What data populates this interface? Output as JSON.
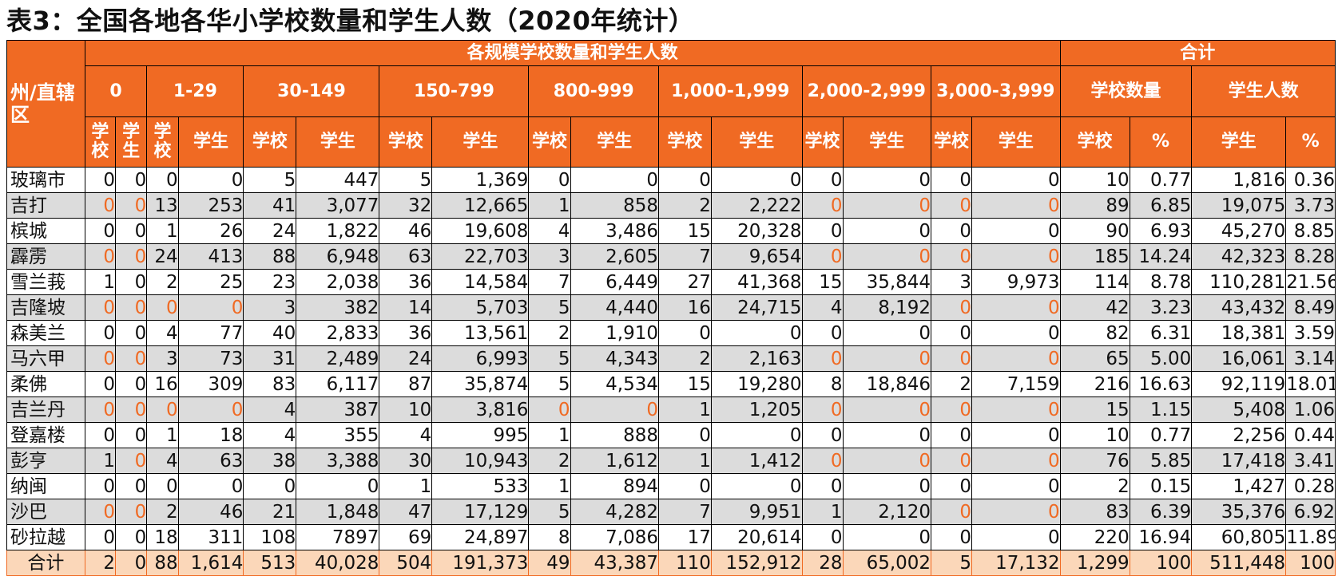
{
  "title": "表3：全国各地各华小学校数量和学生人数（2020年统计）",
  "header": {
    "row_header": "州/直辖区",
    "group_main": "各规模学校数量和学生人数",
    "group_total": "合计",
    "size_bands": [
      "0",
      "1-29",
      "30-149",
      "150-799",
      "800-999",
      "1,000-1,999",
      "2,000-2,999",
      "3,000-3,999"
    ],
    "total_subgroups": [
      "学校数量",
      "学生人数"
    ],
    "sub_school": "学校",
    "sub_student": "学生",
    "sub_pct": "%"
  },
  "rows": [
    {
      "name": "玻璃市",
      "v": [
        "0",
        "0",
        "0",
        "0",
        "5",
        "447",
        "5",
        "1,369",
        "0",
        "0",
        "0",
        "0",
        "0",
        "0",
        "0",
        "0",
        "10",
        "0.77",
        "1,816",
        "0.36"
      ]
    },
    {
      "name": "吉打",
      "v": [
        "0",
        "0",
        "13",
        "253",
        "41",
        "3,077",
        "32",
        "12,665",
        "1",
        "858",
        "2",
        "2,222",
        "0",
        "0",
        "0",
        "0",
        "89",
        "6.85",
        "19,075",
        "3.73"
      ]
    },
    {
      "name": "槟城",
      "v": [
        "0",
        "0",
        "1",
        "26",
        "24",
        "1,822",
        "46",
        "19,608",
        "4",
        "3,486",
        "15",
        "20,328",
        "0",
        "0",
        "0",
        "0",
        "90",
        "6.93",
        "45,270",
        "8.85"
      ]
    },
    {
      "name": "霹雳",
      "v": [
        "0",
        "0",
        "24",
        "413",
        "88",
        "6,948",
        "63",
        "22,703",
        "3",
        "2,605",
        "7",
        "9,654",
        "0",
        "0",
        "0",
        "0",
        "185",
        "14.24",
        "42,323",
        "8.28"
      ]
    },
    {
      "name": "雪兰莪",
      "v": [
        "1",
        "0",
        "2",
        "25",
        "23",
        "2,038",
        "36",
        "14,584",
        "7",
        "6,449",
        "27",
        "41,368",
        "15",
        "35,844",
        "3",
        "9,973",
        "114",
        "8.78",
        "110,281",
        "21.56"
      ]
    },
    {
      "name": "吉隆坡",
      "v": [
        "0",
        "0",
        "0",
        "0",
        "3",
        "382",
        "14",
        "5,703",
        "5",
        "4,440",
        "16",
        "24,715",
        "4",
        "8,192",
        "0",
        "0",
        "42",
        "3.23",
        "43,432",
        "8.49"
      ]
    },
    {
      "name": "森美兰",
      "v": [
        "0",
        "0",
        "4",
        "77",
        "40",
        "2,833",
        "36",
        "13,561",
        "2",
        "1,910",
        "0",
        "0",
        "0",
        "0",
        "0",
        "0",
        "82",
        "6.31",
        "18,381",
        "3.59"
      ]
    },
    {
      "name": "马六甲",
      "v": [
        "0",
        "0",
        "3",
        "73",
        "31",
        "2,489",
        "24",
        "6,993",
        "5",
        "4,343",
        "2",
        "2,163",
        "0",
        "0",
        "0",
        "0",
        "65",
        "5.00",
        "16,061",
        "3.14"
      ]
    },
    {
      "name": "柔佛",
      "v": [
        "0",
        "0",
        "16",
        "309",
        "83",
        "6,117",
        "87",
        "35,874",
        "5",
        "4,534",
        "15",
        "19,280",
        "8",
        "18,846",
        "2",
        "7,159",
        "216",
        "16.63",
        "92,119",
        "18.01"
      ]
    },
    {
      "name": "吉兰丹",
      "v": [
        "0",
        "0",
        "0",
        "0",
        "4",
        "387",
        "10",
        "3,816",
        "0",
        "0",
        "1",
        "1,205",
        "0",
        "0",
        "0",
        "0",
        "15",
        "1.15",
        "5,408",
        "1.06"
      ]
    },
    {
      "name": "登嘉楼",
      "v": [
        "0",
        "0",
        "1",
        "18",
        "4",
        "355",
        "4",
        "995",
        "1",
        "888",
        "0",
        "0",
        "0",
        "0",
        "0",
        "0",
        "10",
        "0.77",
        "2,256",
        "0.44"
      ]
    },
    {
      "name": "彭亨",
      "v": [
        "1",
        "0",
        "4",
        "63",
        "38",
        "3,388",
        "30",
        "10,943",
        "2",
        "1,612",
        "1",
        "1,412",
        "0",
        "0",
        "0",
        "0",
        "76",
        "5.85",
        "17,418",
        "3.41"
      ]
    },
    {
      "name": "纳闽",
      "v": [
        "0",
        "0",
        "0",
        "0",
        "0",
        "0",
        "1",
        "533",
        "1",
        "894",
        "0",
        "0",
        "0",
        "0",
        "0",
        "0",
        "2",
        "0.15",
        "1,427",
        "0.28"
      ]
    },
    {
      "name": "沙巴",
      "v": [
        "0",
        "0",
        "2",
        "46",
        "21",
        "1,848",
        "47",
        "17,129",
        "5",
        "4,282",
        "7",
        "9,951",
        "1",
        "2,120",
        "0",
        "0",
        "83",
        "6.39",
        "35,376",
        "6.92"
      ]
    },
    {
      "name": "砂拉越",
      "v": [
        "0",
        "0",
        "18",
        "311",
        "108",
        "7897",
        "69",
        "24,897",
        "8",
        "7,086",
        "17",
        "20,614",
        "0",
        "0",
        "0",
        "0",
        "220",
        "16.94",
        "60,805",
        "11.89"
      ]
    }
  ],
  "total": {
    "name": "合计",
    "v": [
      "2",
      "0",
      "88",
      "1,614",
      "513",
      "40,028",
      "504",
      "191,373",
      "49",
      "43,387",
      "110",
      "152,912",
      "28",
      "65,002",
      "5",
      "17,132",
      "1,299",
      "100",
      "511,448",
      "100"
    ]
  },
  "colors": {
    "header_bg": "#f06a23",
    "header_text": "#ffffff",
    "alt_row": "#dcdcdc",
    "total_row": "#fbd7b9",
    "zero_accent": "#f06a23"
  }
}
